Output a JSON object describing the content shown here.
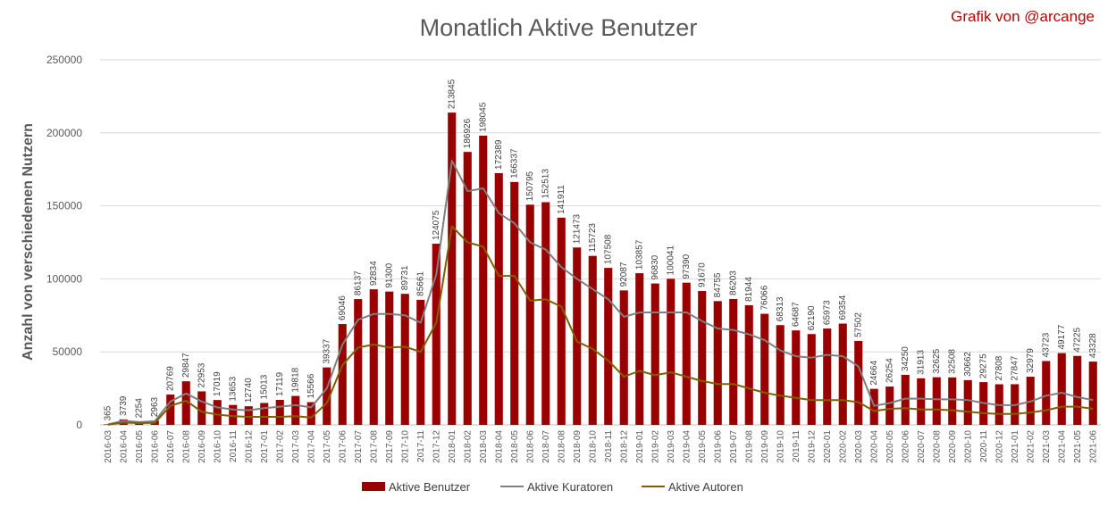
{
  "chart_data": {
    "type": "bar",
    "title": "Monatlich Aktive Benutzer",
    "credit": "Grafik von @arcange",
    "xlabel": "",
    "ylabel": "Anzahl von verschiedenen Nutzern",
    "ylim": [
      0,
      250000
    ],
    "yticks": [
      0,
      50000,
      100000,
      150000,
      200000,
      250000
    ],
    "grid": true,
    "legend_position": "bottom",
    "colors": {
      "bars": "#9b0000",
      "curators": "#7f7f7f",
      "authors": "#7f6000",
      "grid": "#d9d9d9"
    },
    "categories": [
      "2016-03",
      "2016-04",
      "2016-05",
      "2016-06",
      "2016-07",
      "2016-08",
      "2016-09",
      "2016-10",
      "2016-11",
      "2016-12",
      "2017-01",
      "2017-02",
      "2017-03",
      "2017-04",
      "2017-05",
      "2017-06",
      "2017-07",
      "2017-08",
      "2017-09",
      "2017-10",
      "2017-11",
      "2017-12",
      "2018-01",
      "2018-02",
      "2018-03",
      "2018-04",
      "2018-05",
      "2018-06",
      "2018-07",
      "2018-08",
      "2018-09",
      "2018-10",
      "2018-11",
      "2018-12",
      "2019-01",
      "2019-02",
      "2019-03",
      "2019-04",
      "2019-05",
      "2019-06",
      "2019-07",
      "2019-08",
      "2019-09",
      "2019-10",
      "2019-11",
      "2019-12",
      "2020-01",
      "2020-02",
      "2020-03",
      "2020-04",
      "2020-05",
      "2020-06",
      "2020-07",
      "2020-08",
      "2020-09",
      "2020-10",
      "2020-11",
      "2020-12",
      "2021-01",
      "2021-02",
      "2021-03",
      "2021-04",
      "2021-05",
      "2021-06"
    ],
    "series": [
      {
        "name": "Aktive Benutzer",
        "kind": "bar",
        "values": [
          365,
          3739,
          2254,
          2963,
          20769,
          29847,
          22953,
          17019,
          13653,
          12740,
          15013,
          17119,
          19818,
          15566,
          39337,
          69046,
          86137,
          92834,
          91300,
          89731,
          85661,
          124075,
          213845,
          186926,
          198045,
          172389,
          166337,
          150795,
          152513,
          141911,
          121473,
          115723,
          107508,
          92087,
          103857,
          96830,
          100041,
          97390,
          91670,
          84755,
          86203,
          81944,
          76066,
          68313,
          64687,
          62190,
          65973,
          69354,
          57502,
          24664,
          26254,
          34250,
          31913,
          32625,
          32508,
          30662,
          29275,
          27808,
          27847,
          32979,
          43723,
          49177,
          47225,
          43328
        ]
      },
      {
        "name": "Aktive Kuratoren",
        "kind": "line",
        "values": [
          300,
          2800,
          1900,
          2500,
          16000,
          21500,
          16000,
          12000,
          10500,
          10000,
          11500,
          12500,
          13500,
          12000,
          25000,
          55000,
          72000,
          76000,
          76000,
          75000,
          70000,
          103000,
          181000,
          160000,
          162000,
          145000,
          138000,
          125000,
          120000,
          108000,
          100000,
          93000,
          86000,
          74000,
          77000,
          77000,
          77000,
          77000,
          71000,
          66000,
          65000,
          62000,
          58000,
          51000,
          47000,
          46000,
          48000,
          47000,
          40000,
          13000,
          15000,
          18000,
          18000,
          17500,
          17500,
          17000,
          15000,
          13500,
          13500,
          16000,
          20000,
          22000,
          19000,
          17000
        ]
      },
      {
        "name": "Aktive Autoren",
        "kind": "line",
        "values": [
          200,
          1500,
          1200,
          1400,
          13000,
          16500,
          9000,
          7000,
          6000,
          5500,
          5500,
          5500,
          6000,
          5000,
          15000,
          41000,
          53000,
          55000,
          53000,
          53500,
          50000,
          70000,
          136000,
          125000,
          122000,
          102000,
          102000,
          85000,
          86000,
          81000,
          57000,
          52000,
          44000,
          33000,
          37000,
          34000,
          36000,
          33000,
          30000,
          28000,
          28000,
          25000,
          22000,
          20000,
          18500,
          17000,
          17000,
          17000,
          15500,
          9500,
          11000,
          11500,
          10500,
          10500,
          10000,
          9000,
          8000,
          7500,
          7500,
          8500,
          10000,
          12500,
          12500,
          11000
        ]
      }
    ]
  }
}
